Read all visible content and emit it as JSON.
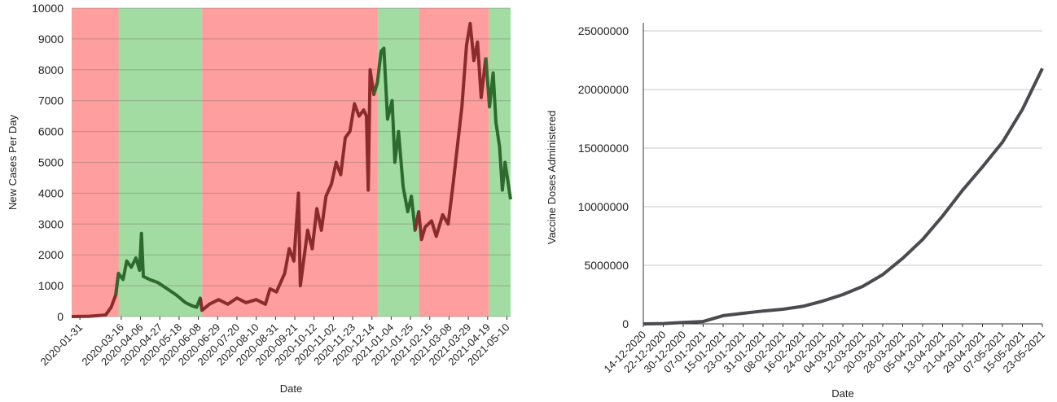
{
  "chart_data": [
    {
      "type": "line",
      "x_label": "Date",
      "y_label": "New Cases Per Day",
      "xlim": [
        "2020-01-22",
        "2021-05-14"
      ],
      "ylim": [
        0,
        10000
      ],
      "yticks": [
        0,
        1000,
        2000,
        3000,
        4000,
        5000,
        6000,
        7000,
        8000,
        9000,
        10000
      ],
      "xticks": [
        "2020-01-31",
        "2020-03-16",
        "2020-04-06",
        "2020-04-27",
        "2020-05-18",
        "2020-06-08",
        "2020-06-29",
        "2020-07-20",
        "2020-08-10",
        "2020-08-31",
        "2020-09-21",
        "2020-10-12",
        "2020-11-02",
        "2020-11-23",
        "2020-12-14",
        "2021-01-04",
        "2021-01-25",
        "2021-02-15",
        "2021-03-08",
        "2021-03-29",
        "2021-04-19",
        "2021-05-10"
      ],
      "grid": true,
      "regions": [
        {
          "start": "2020-01-22",
          "end": "2020-03-13",
          "color": "#ff9e9e",
          "line_color": "#8b2b2b"
        },
        {
          "start": "2020-03-13",
          "end": "2020-06-12",
          "color": "#a3dca3",
          "line_color": "#2d6a2d"
        },
        {
          "start": "2020-06-12",
          "end": "2020-12-20",
          "color": "#ff9e9e",
          "line_color": "#8b2b2b"
        },
        {
          "start": "2020-12-20",
          "end": "2021-02-03",
          "color": "#a3dca3",
          "line_color": "#2d6a2d"
        },
        {
          "start": "2021-02-03",
          "end": "2021-04-20",
          "color": "#ff9e9e",
          "line_color": "#8b2b2b"
        },
        {
          "start": "2021-04-20",
          "end": "2021-05-14",
          "color": "#a3dca3",
          "line_color": "#2d6a2d"
        }
      ],
      "x": [
        "2020-01-22",
        "2020-02-10",
        "2020-02-28",
        "2020-03-05",
        "2020-03-10",
        "2020-03-13",
        "2020-03-18",
        "2020-03-22",
        "2020-03-27",
        "2020-04-01",
        "2020-04-05",
        "2020-04-07",
        "2020-04-09",
        "2020-04-16",
        "2020-04-25",
        "2020-05-05",
        "2020-05-15",
        "2020-05-25",
        "2020-06-01",
        "2020-06-06",
        "2020-06-10",
        "2020-06-12",
        "2020-06-20",
        "2020-06-30",
        "2020-07-10",
        "2020-07-20",
        "2020-07-30",
        "2020-08-10",
        "2020-08-20",
        "2020-08-25",
        "2020-09-01",
        "2020-09-10",
        "2020-09-15",
        "2020-09-20",
        "2020-09-25",
        "2020-09-27",
        "2020-10-05",
        "2020-10-10",
        "2020-10-15",
        "2020-10-20",
        "2020-10-25",
        "2020-10-31",
        "2020-11-05",
        "2020-11-10",
        "2020-11-15",
        "2020-11-20",
        "2020-11-25",
        "2020-11-30",
        "2020-12-05",
        "2020-12-08",
        "2020-12-10",
        "2020-12-12",
        "2020-12-16",
        "2020-12-20",
        "2020-12-24",
        "2020-12-27",
        "2020-12-31",
        "2021-01-05",
        "2021-01-08",
        "2021-01-12",
        "2021-01-17",
        "2021-01-22",
        "2021-01-26",
        "2021-01-30",
        "2021-02-03",
        "2021-02-06",
        "2021-02-10",
        "2021-02-17",
        "2021-02-22",
        "2021-03-01",
        "2021-03-07",
        "2021-03-12",
        "2021-03-17",
        "2021-03-22",
        "2021-03-27",
        "2021-03-31",
        "2021-04-04",
        "2021-04-08",
        "2021-04-12",
        "2021-04-17",
        "2021-04-21",
        "2021-04-25",
        "2021-04-28",
        "2021-05-02",
        "2021-05-05",
        "2021-05-08",
        "2021-05-14"
      ],
      "values": [
        0,
        10,
        50,
        300,
        700,
        1400,
        1200,
        1800,
        1600,
        1900,
        1500,
        2700,
        1300,
        1200,
        1100,
        900,
        700,
        450,
        350,
        300,
        600,
        200,
        400,
        550,
        400,
        600,
        450,
        550,
        400,
        900,
        800,
        1400,
        2200,
        1800,
        4000,
        1000,
        2800,
        2200,
        3500,
        2800,
        3900,
        4300,
        5000,
        4600,
        5800,
        6000,
        6900,
        6500,
        6700,
        6500,
        4100,
        8000,
        7200,
        7600,
        8600,
        8700,
        6400,
        7000,
        5000,
        6000,
        4200,
        3400,
        3900,
        2800,
        3400,
        2500,
        2900,
        3100,
        2600,
        3300,
        3000,
        4200,
        5500,
        6800,
        8800,
        9500,
        8300,
        8900,
        7100,
        8400,
        6800,
        7900,
        6300,
        5500,
        4100,
        5000,
        3800
      ]
    },
    {
      "type": "line",
      "x_label": "Date",
      "y_label": "Vaccine Doses Administered",
      "xlim": [
        "14-12-2020",
        "23-05-2021"
      ],
      "ylim": [
        0,
        25000000
      ],
      "yticks": [
        0,
        5000000,
        10000000,
        15000000,
        20000000,
        25000000
      ],
      "xticks": [
        "14-12-2020",
        "22-12-2020",
        "30-12-2020",
        "07-01-2021",
        "15-01-2021",
        "23-01-2021",
        "31-01-2021",
        "08-02-2021",
        "16-02-2021",
        "24-02-2021",
        "04-03-2021",
        "12-03-2021",
        "20-03-2021",
        "28-03-2021",
        "05-04-2021",
        "13-04-2021",
        "21-04-2021",
        "29-04-2021",
        "07-05-2021",
        "15-05-2021",
        "23-05-2021"
      ],
      "grid": true,
      "color": "#4a4a4f",
      "x": [
        "14-12-2020",
        "22-12-2020",
        "30-12-2020",
        "07-01-2021",
        "15-01-2021",
        "23-01-2021",
        "31-01-2021",
        "08-02-2021",
        "16-02-2021",
        "24-02-2021",
        "04-03-2021",
        "12-03-2021",
        "20-03-2021",
        "28-03-2021",
        "05-04-2021",
        "13-04-2021",
        "21-04-2021",
        "29-04-2021",
        "07-05-2021",
        "15-05-2021",
        "23-05-2021"
      ],
      "values": [
        0,
        30000,
        120000,
        200000,
        700000,
        900000,
        1100000,
        1250000,
        1500000,
        1950000,
        2500000,
        3200000,
        4200000,
        5600000,
        7200000,
        9200000,
        11400000,
        13400000,
        15500000,
        18300000,
        21800000
      ]
    }
  ]
}
